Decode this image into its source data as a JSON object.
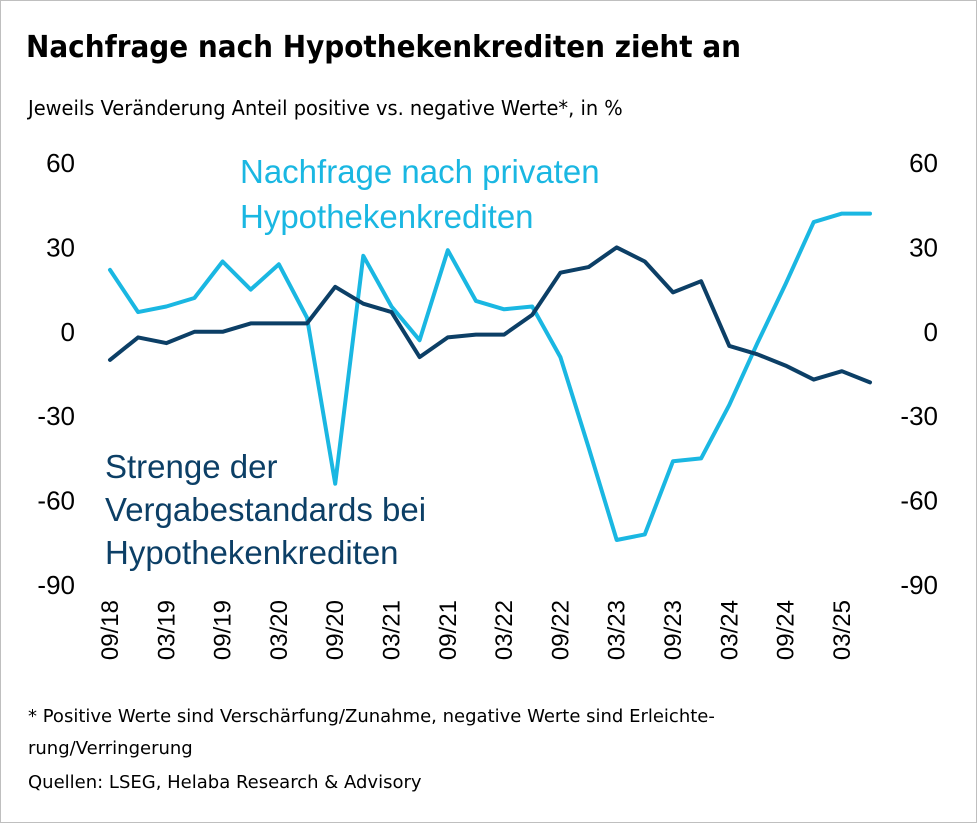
{
  "title": "Nachfrage nach Hypothekenkrediten zieht an",
  "subtitle": "Jeweils Veränderung Anteil positive vs. negative Werte*, in %",
  "footnote_line1": "* Positive Werte sind Verschärfung/Zunahme, negative Werte sind Erleichte-",
  "footnote_line2": "rung/Verringerung",
  "source": "Quellen: LSEG, Helaba Research & Advisory",
  "colors": {
    "demand": "#1ab7e2",
    "standards": "#0c3f66"
  },
  "chart_data": {
    "type": "line",
    "ylim": [
      -90,
      60
    ],
    "yticks": [
      "60",
      "30",
      "0",
      "-30",
      "-60",
      "-90"
    ],
    "yticks_right": [
      "60",
      "30",
      "0",
      "-30",
      "-60",
      "-90"
    ],
    "xtick_labels": [
      "09/18",
      "03/19",
      "09/19",
      "03/20",
      "09/20",
      "03/21",
      "09/21",
      "03/22",
      "09/22",
      "03/23",
      "09/23",
      "03/24",
      "09/24",
      "03/25"
    ],
    "x": [
      "09/18",
      "12/18",
      "03/19",
      "06/19",
      "09/19",
      "12/19",
      "03/20",
      "06/20",
      "09/20",
      "12/20",
      "03/21",
      "06/21",
      "09/21",
      "12/21",
      "03/22",
      "06/22",
      "09/22",
      "12/22",
      "03/23",
      "06/23",
      "09/23",
      "12/23",
      "03/24",
      "06/24",
      "09/24",
      "12/24",
      "03/25",
      "06/25"
    ],
    "series": [
      {
        "name": "Nachfrage nach privaten Hypothekenkrediten",
        "label_lines": [
          "Nachfrage nach privaten",
          "Hypothekenkrediten"
        ],
        "values": [
          22,
          7,
          9,
          12,
          25,
          15,
          24,
          5,
          -54,
          27,
          9,
          -3,
          29,
          11,
          8,
          9,
          -9,
          -41,
          -74,
          -72,
          -46,
          -45,
          -26,
          -4,
          17,
          39,
          42,
          42
        ]
      },
      {
        "name": "Strenge der Vergabestandards bei Hypothekenkrediten",
        "label_lines": [
          "Strenge der",
          "Vergabestandards bei",
          "Hypothekenkrediten"
        ],
        "values": [
          -10,
          -2,
          -4,
          0,
          0,
          3,
          3,
          3,
          16,
          10,
          7,
          -9,
          -2,
          -1,
          -1,
          6,
          21,
          23,
          30,
          25,
          14,
          18,
          -5,
          -8,
          -12,
          -17,
          -14,
          -18
        ]
      }
    ]
  }
}
